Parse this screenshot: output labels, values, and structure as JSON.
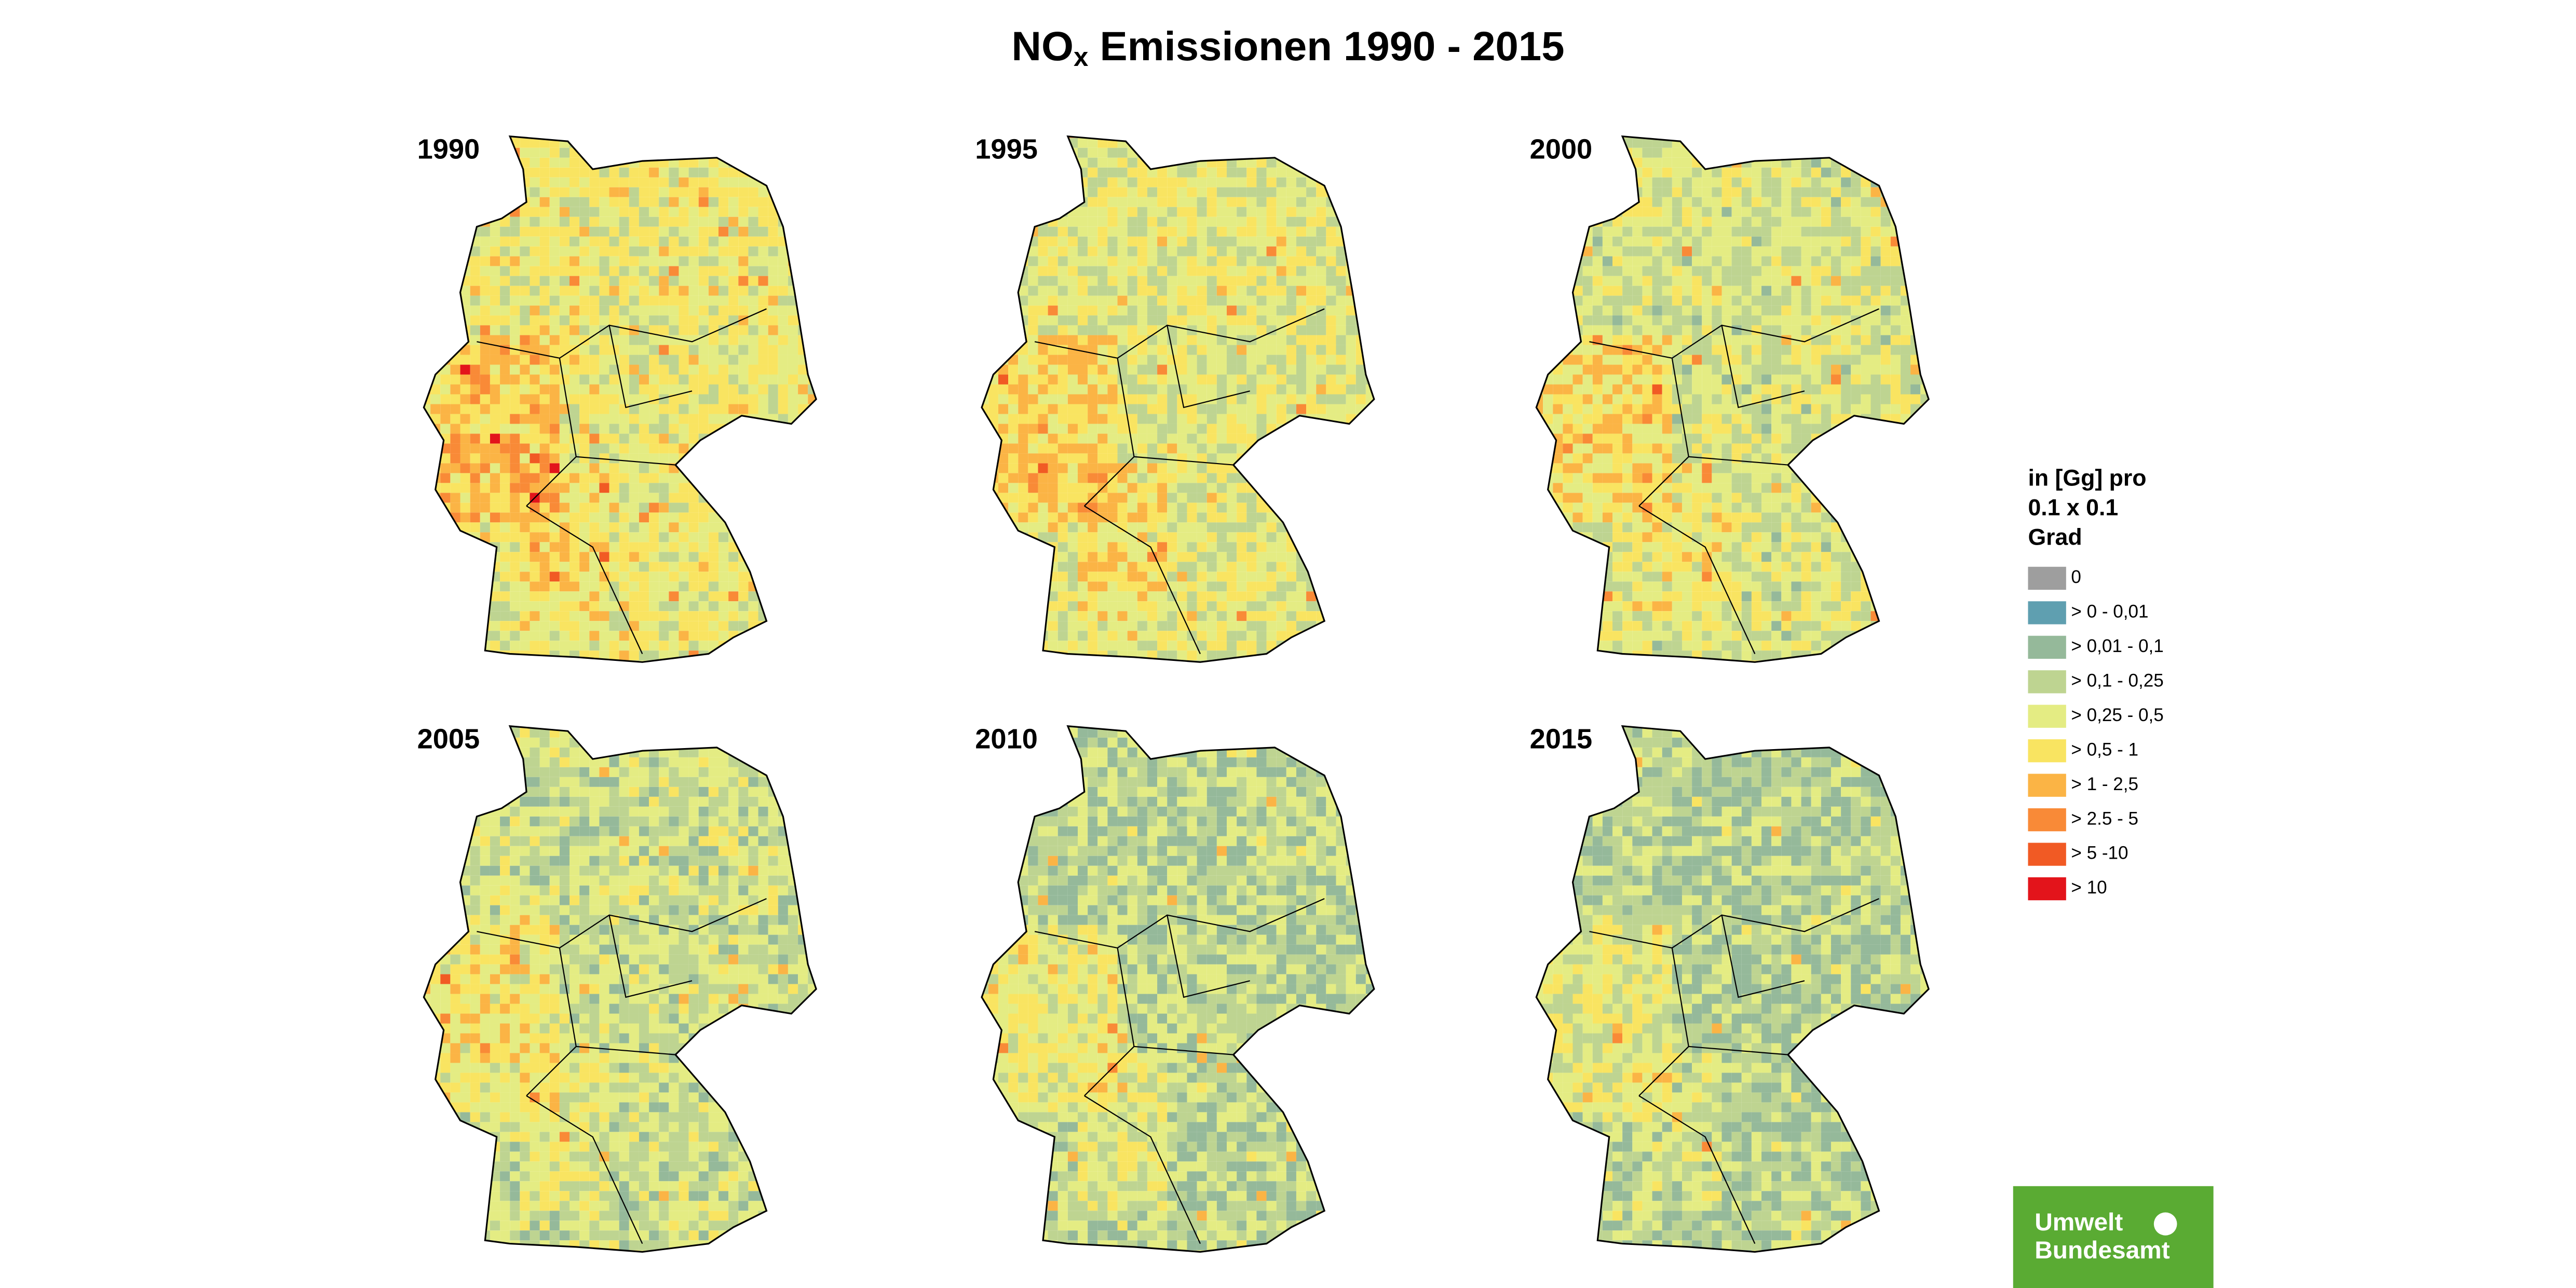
{
  "title": {
    "main": "NO",
    "subscript": "x",
    "rest": " Emissionen 1990 - 2015"
  },
  "panels": [
    {
      "year": "1990"
    },
    {
      "year": "1995"
    },
    {
      "year": "2000"
    },
    {
      "year": "2005"
    },
    {
      "year": "2010"
    },
    {
      "year": "2015"
    }
  ],
  "legend": {
    "title": [
      "in [Gg] pro",
      "0.1 x 0.1",
      "Grad"
    ],
    "items": [
      {
        "label": "0",
        "color": "#9e9e9e"
      },
      {
        "label": "> 0 - 0,01",
        "color": "#5f9fb0"
      },
      {
        "label": "> 0,01 - 0,1",
        "color": "#95b99a"
      },
      {
        "label": "> 0,1 - 0,25",
        "color": "#bed491"
      },
      {
        "label": "> 0,25 - 0,5",
        "color": "#e4ec83"
      },
      {
        "label": "> 0,5 - 1",
        "color": "#f9e461"
      },
      {
        "label": "> 1 - 2,5",
        "color": "#fbb445"
      },
      {
        "label": "> 2.5 - 5",
        "color": "#f98a37"
      },
      {
        "label": "> 5 -10",
        "color": "#f15a24"
      },
      {
        "label": "> 10",
        "color": "#e3141b"
      }
    ]
  },
  "logo": {
    "line1": "Umwelt",
    "line2": "Bundesamt"
  }
}
